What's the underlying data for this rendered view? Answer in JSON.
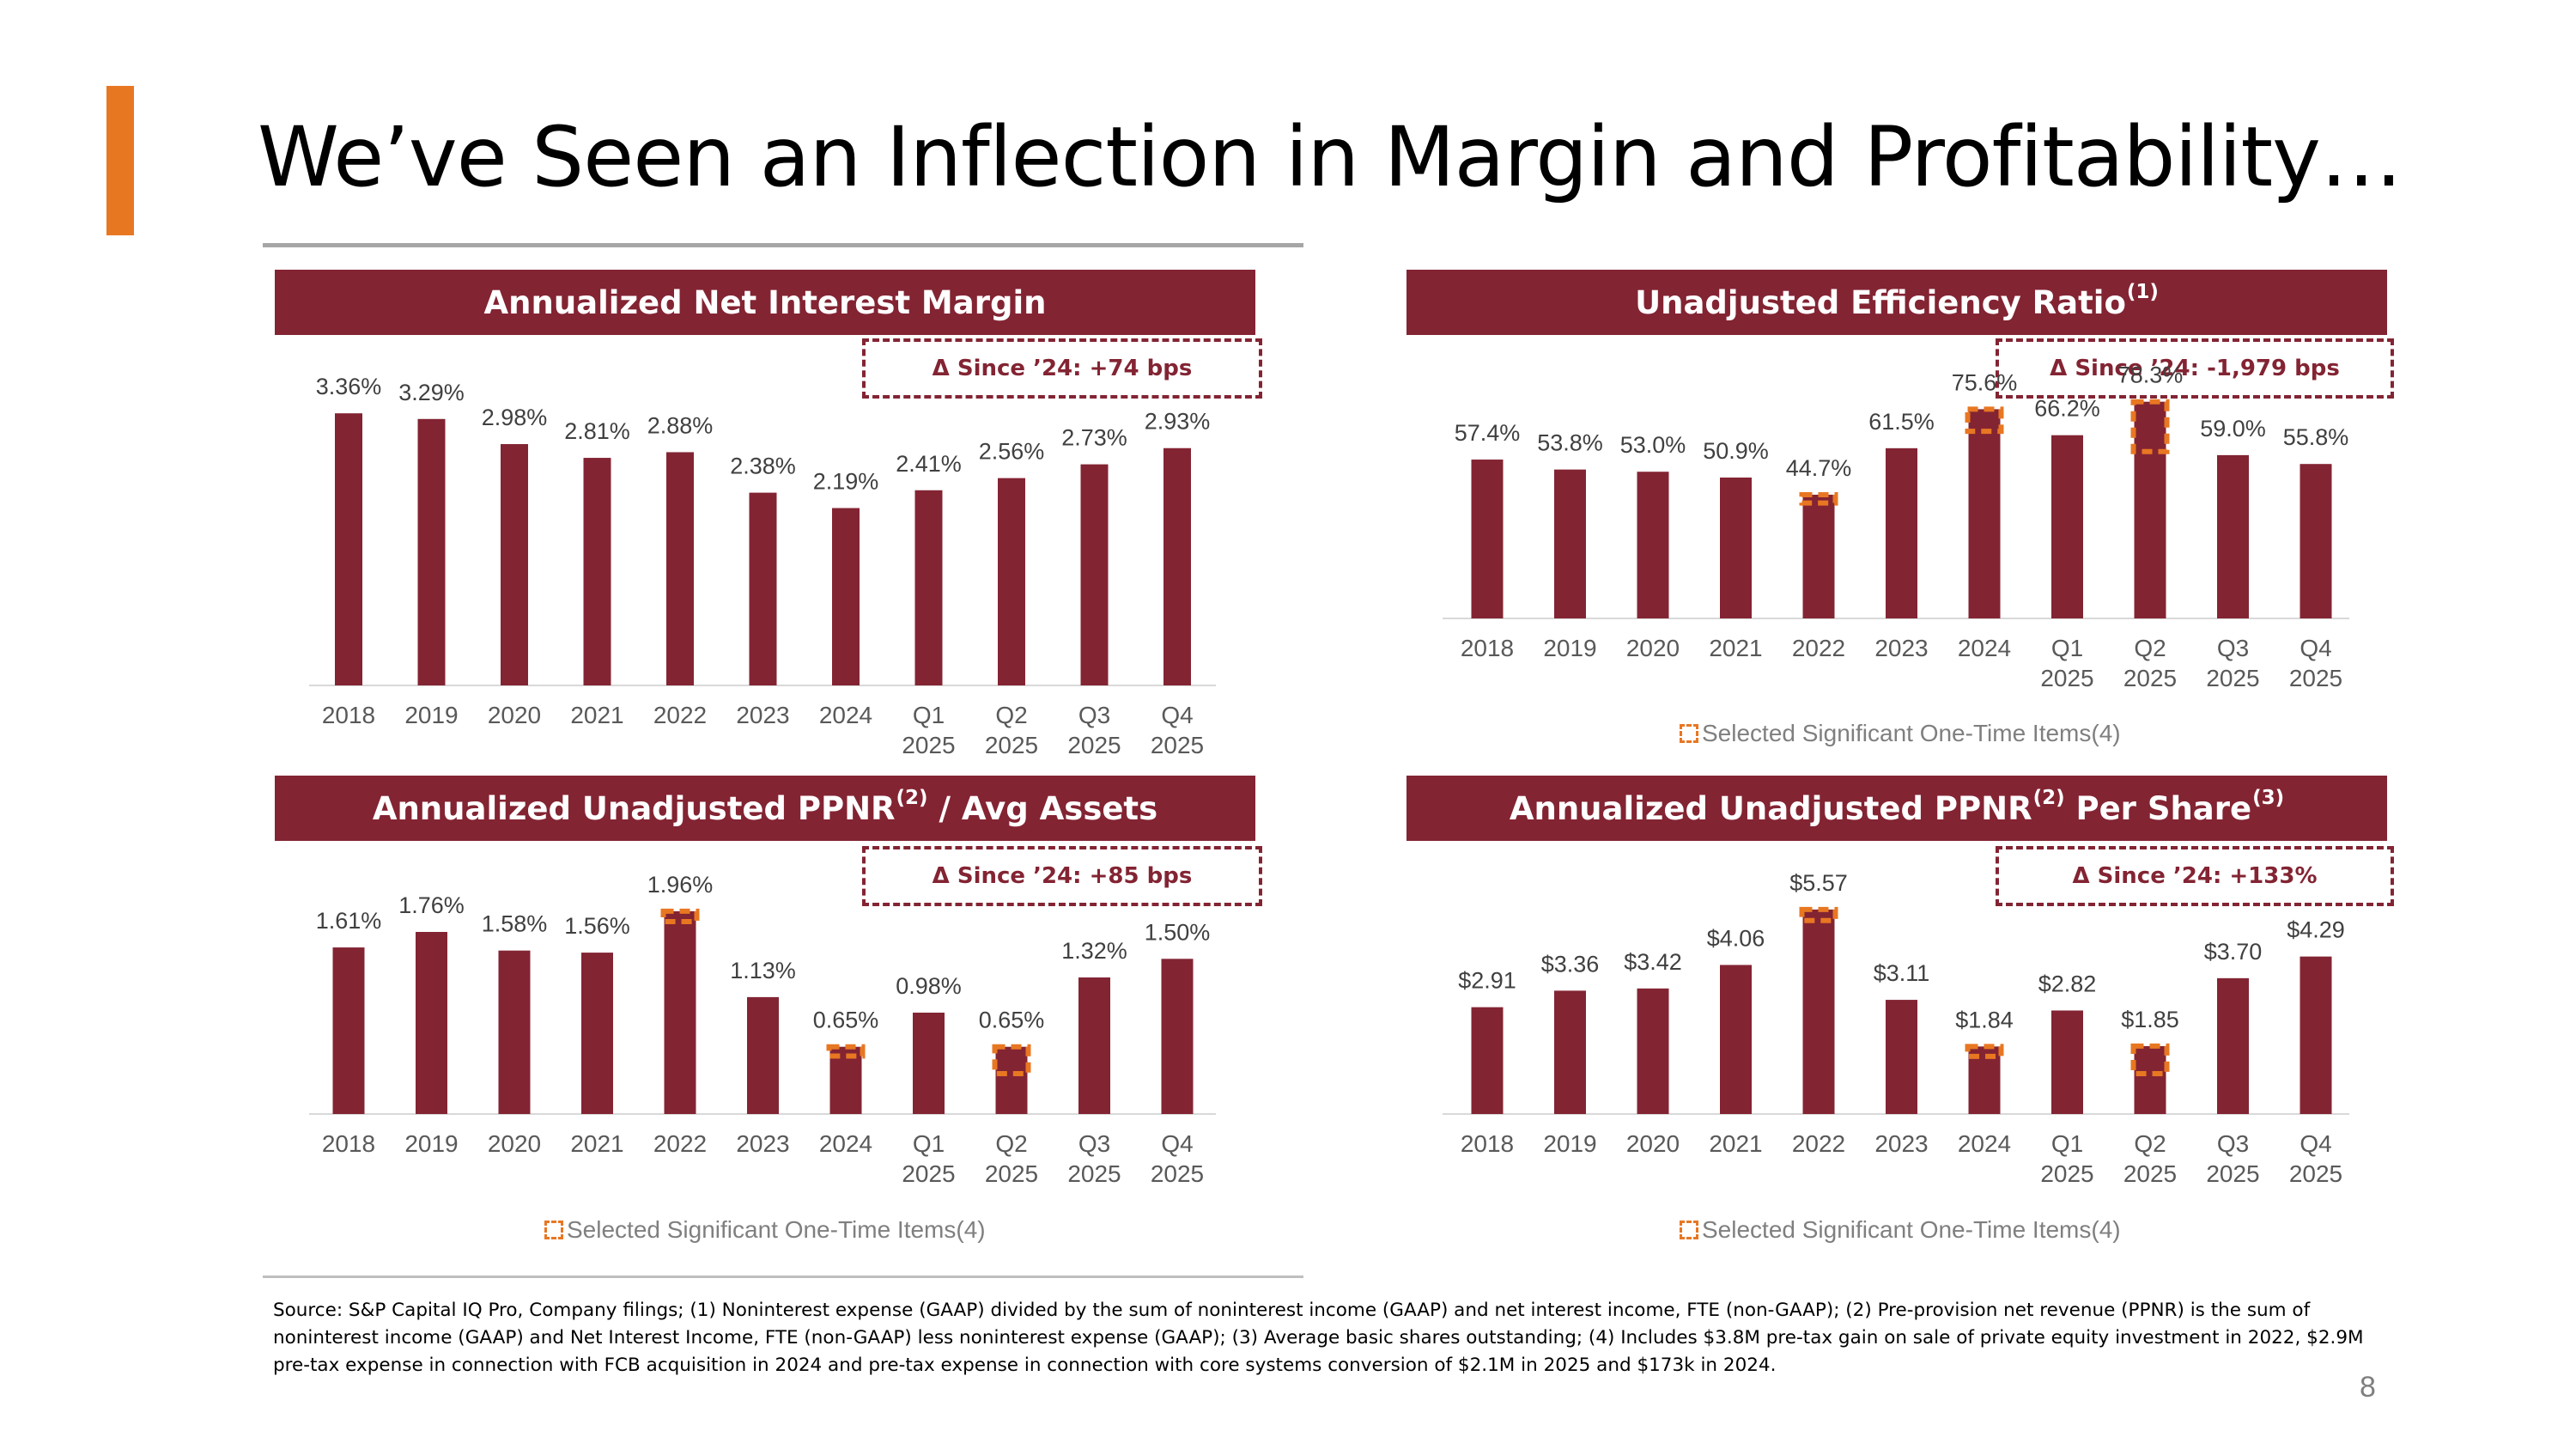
{
  "page": {
    "title": "We’ve Seen an Inflection in Margin and Profitability…",
    "footnote": "Source: S&P Capital IQ Pro, Company filings; (1) Noninterest expense (GAAP) divided by the sum of noninterest income (GAAP) and net interest income, FTE (non-GAAP); (2) Pre-provision net revenue (PPNR) is the sum of noninterest income (GAAP) and Net Interest Income, FTE (non-GAAP) less noninterest expense (GAAP); (3) Average basic shares outstanding; (4) Includes $3.8M pre-tax gain on sale of private equity investment in 2022, $2.9M pre-tax expense in connection with FCB acquisition in 2024 and pre-tax expense in connection with core systems conversion of $2.1M in 2025 and $173k in 2024.",
    "page_number": "8"
  },
  "colors": {
    "bar": "#832433",
    "accent": "#e87722",
    "axis_text": "#595959",
    "label_text": "#404040"
  },
  "chart_data": [
    {
      "type": "bar",
      "title": "Annualized Net Interest Margin",
      "title_sup": "",
      "delta": "Δ Since ’24: +74 bps",
      "legend": "",
      "categories": [
        "2018",
        "2019",
        "2020",
        "2021",
        "2022",
        "2023",
        "2024",
        "Q1 2025",
        "Q2 2025",
        "Q3 2025",
        "Q4 2025"
      ],
      "values": [
        3.36,
        3.29,
        2.98,
        2.81,
        2.88,
        2.38,
        2.19,
        2.41,
        2.56,
        2.73,
        2.93
      ],
      "labels": [
        "3.36%",
        "3.29%",
        "2.98%",
        "2.81%",
        "2.88%",
        "2.38%",
        "2.19%",
        "2.41%",
        "2.56%",
        "2.73%",
        "2.93%"
      ],
      "ylim": [
        0,
        3.5
      ],
      "one_time_items": []
    },
    {
      "type": "bar",
      "title": "Unadjusted Efficiency Ratio",
      "title_sup": "(1)",
      "delta": "Δ Since ’24: -1,979 bps",
      "legend": "Selected Significant One-Time Items(4)",
      "categories": [
        "2018",
        "2019",
        "2020",
        "2021",
        "2022",
        "2023",
        "2024",
        "Q1 2025",
        "Q2 2025",
        "Q3 2025",
        "Q4 2025"
      ],
      "values": [
        57.4,
        53.8,
        53.0,
        50.9,
        44.7,
        61.5,
        75.6,
        66.2,
        78.3,
        59.0,
        55.8
      ],
      "labels": [
        "57.4%",
        "53.8%",
        "53.0%",
        "50.9%",
        "44.7%",
        "61.5%",
        "75.6%",
        "66.2%",
        "78.3%",
        "59.0%",
        "55.8%"
      ],
      "ylim": [
        0,
        90
      ],
      "one_time_items": [
        {
          "category": "2022",
          "value": 3.0
        },
        {
          "category": "2024",
          "value": 8.0
        },
        {
          "category": "Q2 2025",
          "value": 18.0
        }
      ]
    },
    {
      "type": "bar",
      "title": "Annualized Unadjusted PPNR",
      "title_sup": "(2)",
      "title_suffix": " / Avg Assets",
      "delta": "Δ Since ’24: +85 bps",
      "legend": "Selected Significant One-Time Items(4)",
      "categories": [
        "2018",
        "2019",
        "2020",
        "2021",
        "2022",
        "2023",
        "2024",
        "Q1 2025",
        "Q2 2025",
        "Q3 2025",
        "Q4 2025"
      ],
      "values": [
        1.61,
        1.76,
        1.58,
        1.56,
        1.96,
        1.13,
        0.65,
        0.98,
        0.65,
        1.32,
        1.5
      ],
      "labels": [
        "1.61%",
        "1.76%",
        "1.58%",
        "1.56%",
        "1.96%",
        "1.13%",
        "0.65%",
        "0.98%",
        "0.65%",
        "1.32%",
        "1.50%"
      ],
      "ylim": [
        0,
        2.2
      ],
      "one_time_items": [
        {
          "category": "2022",
          "value": 0.1
        },
        {
          "category": "2024",
          "value": 0.09
        },
        {
          "category": "Q2 2025",
          "value": 0.26
        }
      ]
    },
    {
      "type": "bar",
      "title": "Annualized Unadjusted PPNR",
      "title_sup": "(2)",
      "title_suffix": " Per Share",
      "title_sup2": "(3)",
      "delta": "Δ Since ’24: +133%",
      "legend": "Selected Significant One-Time Items(4)",
      "categories": [
        "2018",
        "2019",
        "2020",
        "2021",
        "2022",
        "2023",
        "2024",
        "Q1 2025",
        "Q2 2025",
        "Q3 2025",
        "Q4 2025"
      ],
      "values": [
        2.91,
        3.36,
        3.42,
        4.06,
        5.57,
        3.11,
        1.84,
        2.82,
        1.85,
        3.7,
        4.29
      ],
      "labels": [
        "$2.91",
        "$3.36",
        "$3.42",
        "$4.06",
        "$5.57",
        "$3.11",
        "$1.84",
        "$2.82",
        "$1.85",
        "$3.70",
        "$4.29"
      ],
      "ylim": [
        0,
        6.2
      ],
      "one_time_items": [
        {
          "category": "2022",
          "value": 0.3
        },
        {
          "category": "2024",
          "value": 0.27
        },
        {
          "category": "Q2 2025",
          "value": 0.75
        }
      ]
    }
  ]
}
